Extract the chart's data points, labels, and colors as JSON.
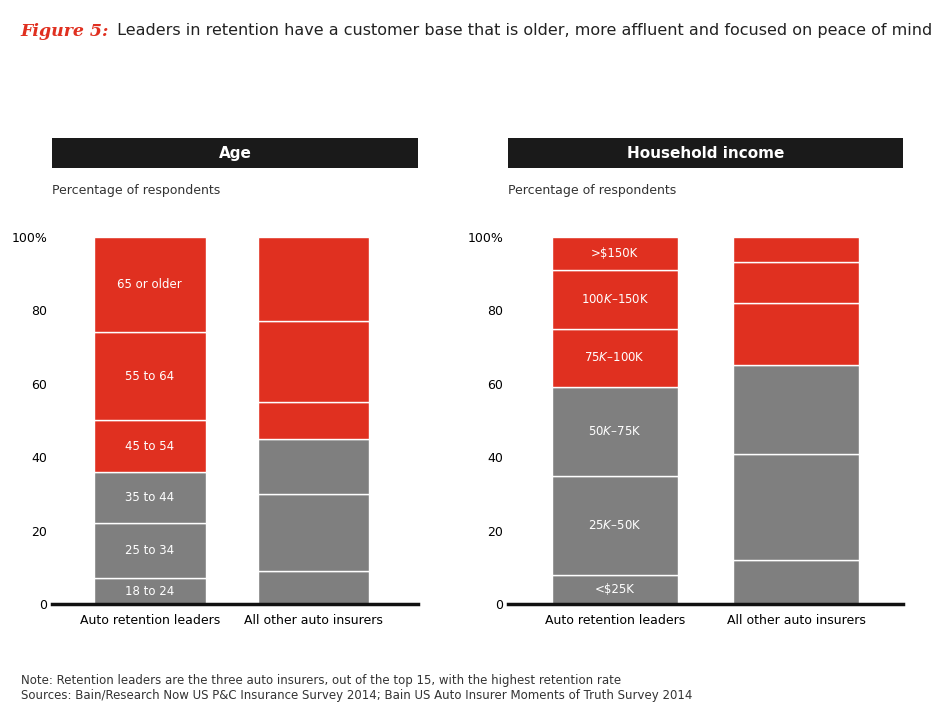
{
  "title_italic": "Figure 5:",
  "title_main": " Leaders in retention have a customer base that is older, more affluent and focused on peace of mind",
  "left_chart_title": "Age",
  "right_chart_title": "Household income",
  "ylabel_label": "Percentage of respondents",
  "xlabel_labels": [
    "Auto retention leaders",
    "All other auto insurers"
  ],
  "age_categories": [
    "18 to 24",
    "25 to 34",
    "35 to 44",
    "45 to 54",
    "55 to 64",
    "65 or older"
  ],
  "age_leaders": [
    7,
    15,
    14,
    14,
    24,
    26
  ],
  "age_others": [
    9,
    21,
    15,
    10,
    22,
    23
  ],
  "income_categories": [
    "<$25K",
    "$25K–$50K",
    "$50K–$75K",
    "$75K–$100K",
    "$100K–$150K",
    ">$150K"
  ],
  "income_leaders": [
    8,
    27,
    24,
    16,
    16,
    9
  ],
  "income_others": [
    12,
    29,
    24,
    17,
    11,
    7
  ],
  "gray_color": "#7f7f7f",
  "red_color": "#e03020",
  "header_bg": "#1a1a1a",
  "header_text": "#ffffff",
  "bar_text_color": "#ffffff",
  "note_text": "Note: Retention leaders are the three auto insurers, out of the top 15, with the highest retention rate\nSources: Bain/Research Now US P&C Insurance Survey 2014; Bain US Auto Insurer Moments of Truth Survey 2014",
  "fig_bg": "#ffffff",
  "separator_color": "#ffffff",
  "axis_bottom_color": "#111111"
}
